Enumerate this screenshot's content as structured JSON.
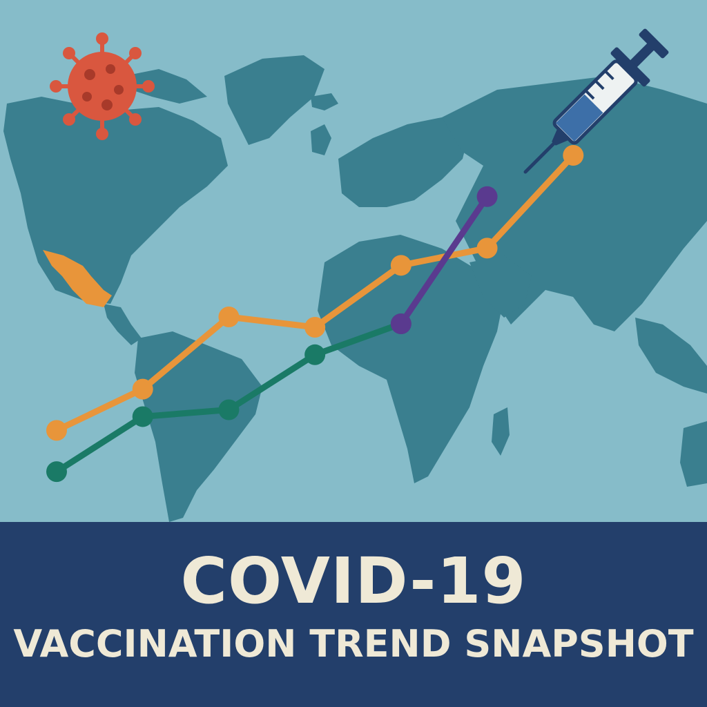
{
  "banner": {
    "title": "COVID-19",
    "subtitle": "VACCINATION TREND SNAPSHOT"
  },
  "icons": [
    "virus-icon",
    "syringe-icon"
  ],
  "colors": {
    "background": "#86bcc9",
    "land": "#3a7f8f",
    "highlight_land": "#e8953a",
    "banner": "#233f6b",
    "banner_text": "#efe9d6",
    "virus": "#d9573f",
    "syringe_outline": "#233f6b",
    "syringe_liquid": "#3d6fa8"
  },
  "chart_data": {
    "type": "line",
    "title": "",
    "xlabel": "",
    "ylabel": "",
    "grid": false,
    "legend": "none",
    "x": [
      1,
      2,
      3,
      4,
      5,
      6,
      7,
      8
    ],
    "ylim": [
      0,
      100
    ],
    "series": [
      {
        "color": "#e8953a",
        "values": [
          18,
          30,
          51,
          48,
          66,
          71,
          98,
          null
        ]
      },
      {
        "color": "#1a7a66",
        "values": [
          6,
          22,
          24,
          40,
          49,
          null,
          null,
          null
        ]
      },
      {
        "color": "#5a3a8f",
        "values": [
          null,
          null,
          null,
          null,
          49,
          86,
          null,
          null
        ]
      }
    ]
  }
}
